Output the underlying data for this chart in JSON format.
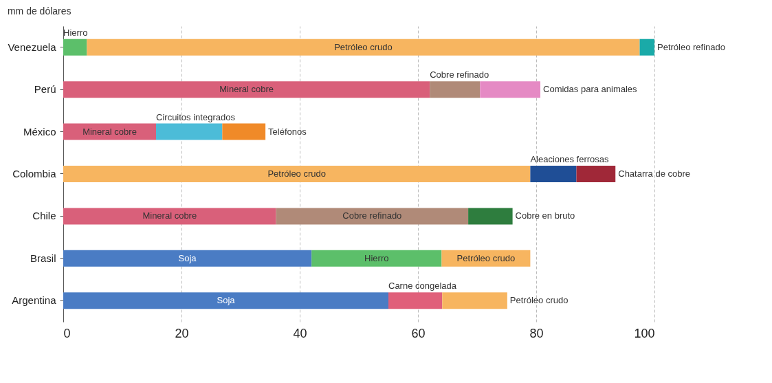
{
  "chart_data": {
    "type": "bar",
    "title": "mm de dólares",
    "orientation": "horizontal",
    "stacked": true,
    "grid": "x",
    "categories": [
      "Venezuela",
      "Perú",
      "México",
      "Colombia",
      "Chile",
      "Brasil",
      "Argentina"
    ],
    "xlim": [
      0,
      100
    ],
    "xticks": [
      0,
      20,
      40,
      60,
      80,
      100
    ],
    "series": [
      {
        "name": "Soja",
        "color": "#4a7cc4",
        "values": [
          null,
          null,
          null,
          null,
          null,
          42,
          55
        ]
      },
      {
        "name": "Mineral cobre",
        "color": "#d9607a",
        "values": [
          null,
          62,
          15.7,
          null,
          36,
          null,
          null
        ]
      },
      {
        "name": "Carne congelada",
        "color": "#e0607a",
        "values": [
          null,
          null,
          null,
          null,
          null,
          null,
          9.1
        ]
      },
      {
        "name": "Hierro",
        "color": "#5cbf6a",
        "values": [
          4,
          null,
          null,
          null,
          null,
          22,
          null
        ]
      },
      {
        "name": "Petróleo crudo",
        "color": "#f7b560",
        "values": [
          93.5,
          null,
          null,
          79,
          null,
          15,
          11
        ]
      },
      {
        "name": "Petróleo refinado",
        "color": "#1aaaa8",
        "values": [
          2.5,
          null,
          null,
          null,
          null,
          null,
          null
        ]
      },
      {
        "name": "Cobre refinado",
        "color": "#b08a78",
        "values": [
          null,
          8.5,
          null,
          null,
          32.5,
          null,
          null
        ]
      },
      {
        "name": "Comidas para animales",
        "color": "#e58ac4",
        "values": [
          null,
          10.2,
          null,
          null,
          null,
          null,
          null
        ]
      },
      {
        "name": "Cobre en bruto",
        "color": "#2e7d3e",
        "values": [
          null,
          null,
          null,
          null,
          7.5,
          null,
          null
        ]
      },
      {
        "name": "Circuitos integrados",
        "color": "#4cbcd8",
        "values": [
          null,
          null,
          11.2,
          null,
          null,
          null,
          null
        ]
      },
      {
        "name": "Teléfonos",
        "color": "#f08a28",
        "values": [
          null,
          null,
          7.3,
          null,
          null,
          null,
          null
        ]
      },
      {
        "name": "Aleaciones ferrosas",
        "color": "#1f4e96",
        "values": [
          null,
          null,
          null,
          7.8,
          null,
          null,
          null
        ]
      },
      {
        "name": "Chatarra de cobre",
        "color": "#a02838",
        "values": [
          null,
          null,
          null,
          6.6,
          null,
          null,
          null
        ]
      }
    ]
  }
}
